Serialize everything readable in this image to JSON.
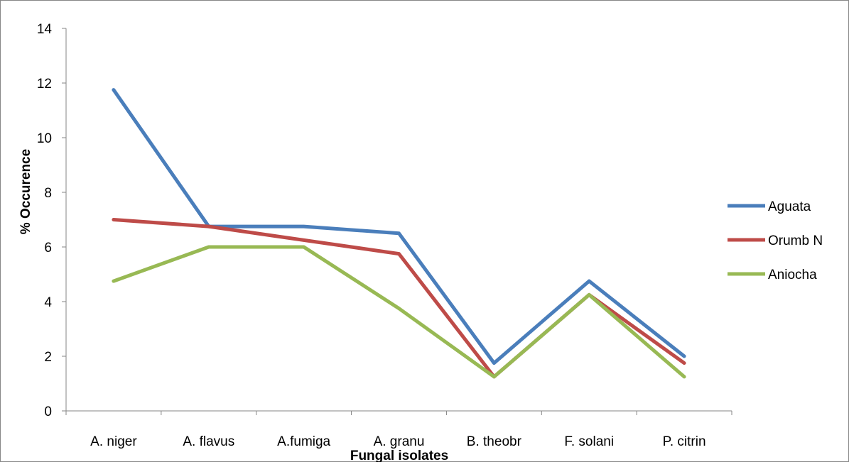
{
  "chart_data": {
    "type": "line",
    "title": "",
    "xlabel": "Fungal isolates",
    "ylabel": "% Occurence",
    "categories": [
      "A. niger",
      "A. flavus",
      "A.fumiga",
      "A. granu",
      "B. theobr",
      "F. solani",
      "P. citrin"
    ],
    "ylim": [
      0,
      14
    ],
    "yticks": [
      0,
      2,
      4,
      6,
      8,
      10,
      12,
      14
    ],
    "grid": false,
    "legend_position": "right",
    "series": [
      {
        "name": "Aguata",
        "color": "#4a7ebb",
        "values": [
          11.75,
          6.75,
          6.75,
          6.5,
          1.75,
          4.75,
          2.0
        ]
      },
      {
        "name": "Orumb N",
        "color": "#be4b48",
        "values": [
          7.0,
          6.75,
          6.25,
          5.75,
          1.25,
          4.25,
          1.75
        ]
      },
      {
        "name": "Aniocha",
        "color": "#98b954",
        "values": [
          4.75,
          6.0,
          6.0,
          3.75,
          1.25,
          4.25,
          1.25
        ]
      }
    ]
  }
}
